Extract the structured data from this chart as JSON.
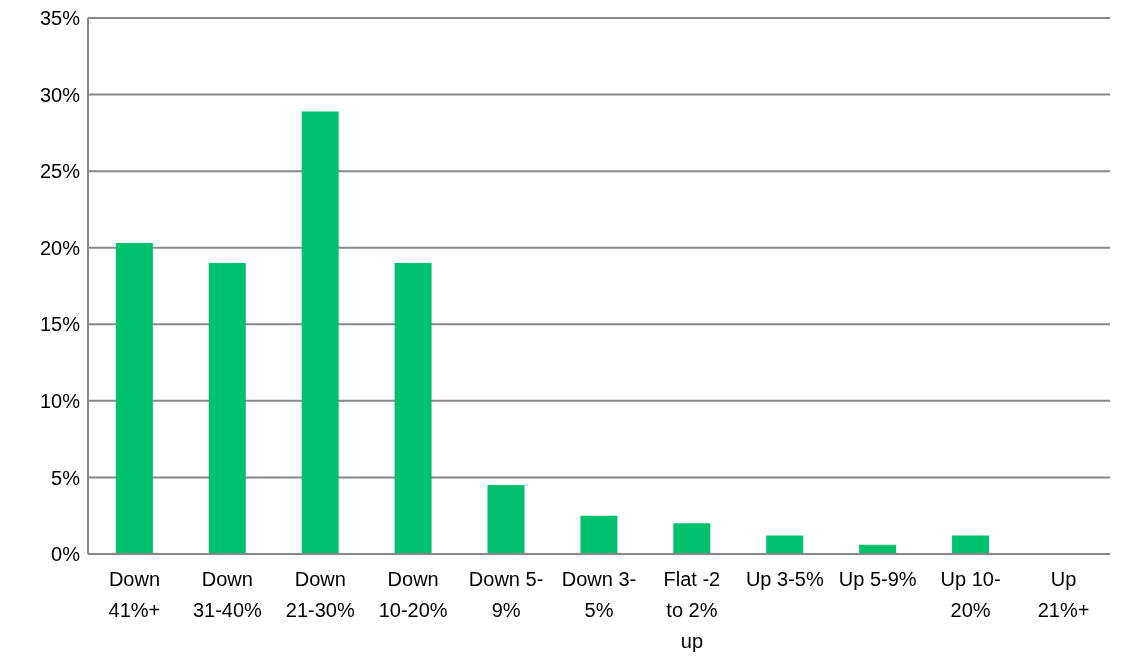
{
  "chart_data": {
    "type": "bar",
    "categories": [
      "Down 41%+",
      "Down 31-40%",
      "Down 21-30%",
      "Down 10-20%",
      "Down 5-9%",
      "Down 3-5%",
      "Flat -2 to 2% up",
      "Up 3-5%",
      "Up 5-9%",
      "Up 10-20%",
      "Up 21%+"
    ],
    "values": [
      20.3,
      19.0,
      28.9,
      19.0,
      4.5,
      2.5,
      2.0,
      1.2,
      0.6,
      1.2,
      0
    ],
    "color": "#00c16e",
    "ylim": [
      0,
      35
    ],
    "yticks": [
      {
        "value": 0,
        "label": "0%"
      },
      {
        "value": 5,
        "label": "5%"
      },
      {
        "value": 10,
        "label": "10%"
      },
      {
        "value": 15,
        "label": "15%"
      },
      {
        "value": 20,
        "label": "20%"
      },
      {
        "value": 25,
        "label": "25%"
      },
      {
        "value": 30,
        "label": "30%"
      },
      {
        "value": 35,
        "label": "35%"
      }
    ],
    "grid": "y"
  }
}
